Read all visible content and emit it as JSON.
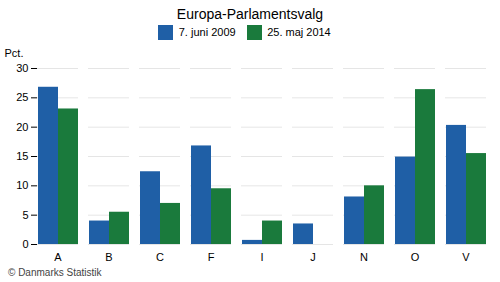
{
  "chart_data": {
    "type": "bar",
    "title": "Europa-Parlamentsvalg",
    "categories": [
      "A",
      "B",
      "C",
      "F",
      "I",
      "J",
      "N",
      "O",
      "V"
    ],
    "series": [
      {
        "name": "7. juni 2009",
        "color": "#1f5fa6",
        "values": [
          26.8,
          4.0,
          12.4,
          16.8,
          0.7,
          3.5,
          8.1,
          14.9,
          20.3
        ]
      },
      {
        "name": "25. maj 2014",
        "color": "#1a7a3c",
        "values": [
          23.1,
          5.5,
          7.0,
          9.5,
          4.0,
          0.0,
          10.0,
          26.4,
          15.5
        ]
      }
    ],
    "ylabel": "Pct.",
    "ylim": [
      0,
      30
    ],
    "yticks": [
      0,
      5,
      10,
      15,
      20,
      25,
      30
    ],
    "grid": true,
    "legend": "top",
    "caption": "© Danmarks Statistik"
  }
}
